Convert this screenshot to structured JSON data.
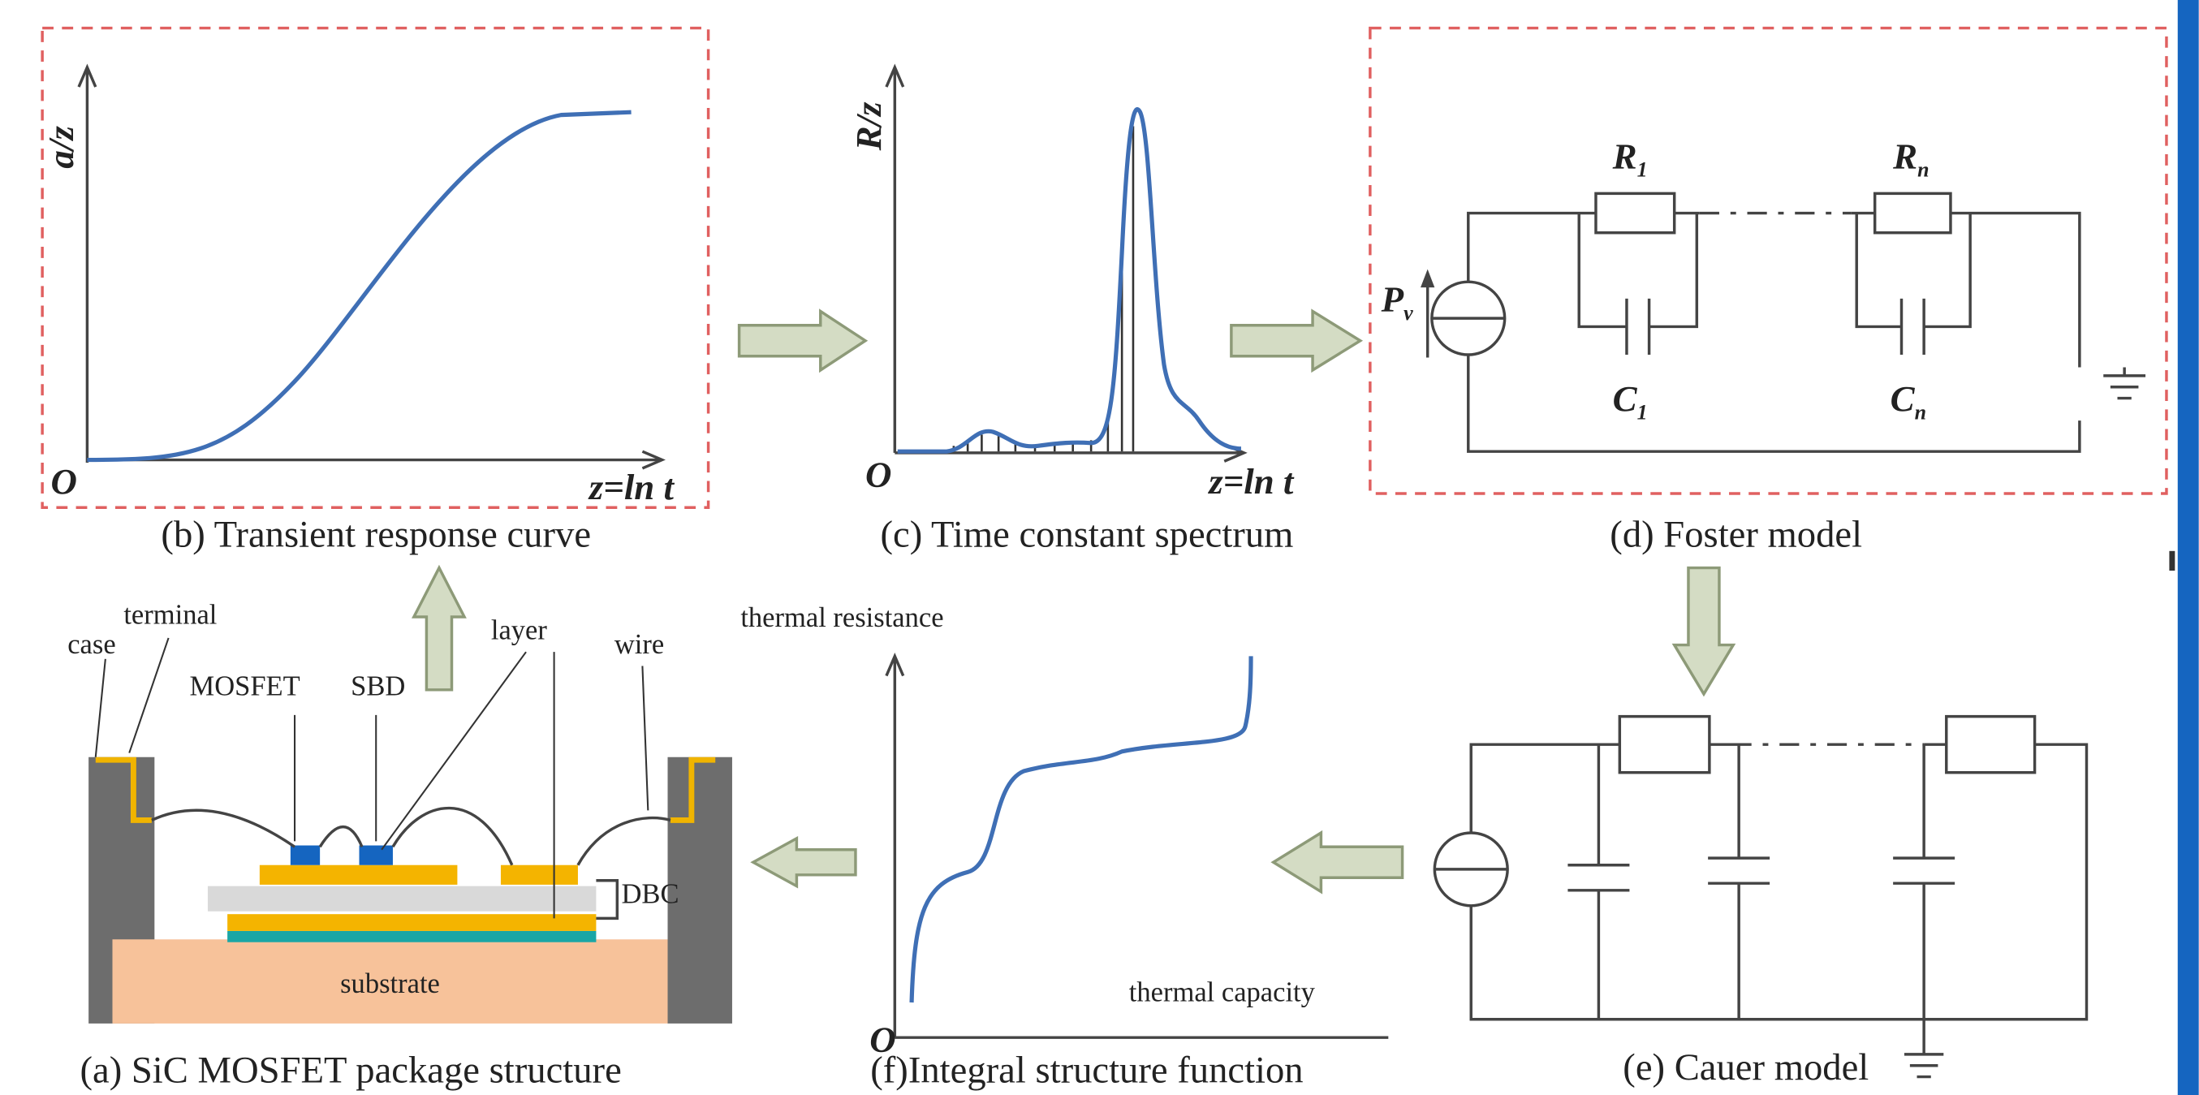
{
  "panels": {
    "b": {
      "caption": "(b) Transient response curve",
      "y_axis": "a/z",
      "origin": "O",
      "x_axis": "z=ln t"
    },
    "c": {
      "caption": "(c) Time constant spectrum",
      "y_axis": "R/z",
      "origin": "O",
      "x_axis": "z=ln t"
    },
    "d": {
      "caption": "(d) Foster model",
      "labels": [
        {
          "main": "P",
          "sub": "v"
        },
        {
          "main": "R",
          "sub": "1"
        },
        {
          "main": "R",
          "sub": "n"
        },
        {
          "main": "C",
          "sub": "1"
        },
        {
          "main": "C",
          "sub": "n"
        }
      ]
    },
    "e": {
      "caption": "(e) Cauer model"
    },
    "f": {
      "caption": "(f)Integral structure function",
      "y_axis": "thermal resistance",
      "x_axis": "thermal capacity",
      "origin": "O"
    },
    "a": {
      "caption": "(a) SiC MOSFET package structure",
      "labels": [
        "case",
        "terminal",
        "MOSFET",
        "SBD",
        "layer",
        "wire",
        "DBC",
        "substrate"
      ]
    }
  }
}
